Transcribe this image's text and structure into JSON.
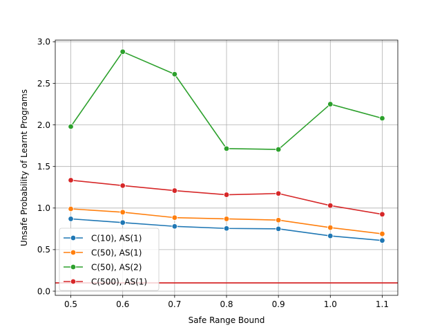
{
  "chart_data": {
    "type": "line",
    "title": "",
    "xlabel": "Safe Range Bound",
    "ylabel": "Unsafe Probability of Learnt Programs",
    "x": [
      0.5,
      0.6,
      0.7,
      0.8,
      0.9,
      1.0,
      1.1
    ],
    "x_tick_labels": [
      "0.5",
      "0.6",
      "0.7",
      "0.8",
      "0.9",
      "1.0",
      "1.1"
    ],
    "xlim": [
      0.47,
      1.13
    ],
    "ylim": [
      -0.05,
      3.02
    ],
    "y_ticks": [
      0.0,
      0.5,
      1.0,
      1.5,
      2.0,
      2.5,
      3.0
    ],
    "y_tick_labels": [
      "0.0",
      "0.5",
      "1.0",
      "1.5",
      "2.0",
      "2.5",
      "3.0"
    ],
    "grid": true,
    "legend_position": "lower-left",
    "series": [
      {
        "name": "C(10), AS(1)",
        "color": "#1f77b4",
        "values": [
          0.87,
          0.825,
          0.78,
          0.755,
          0.75,
          0.665,
          0.61
        ]
      },
      {
        "name": "C(50), AS(1)",
        "color": "#ff7f0e",
        "values": [
          0.99,
          0.95,
          0.885,
          0.87,
          0.855,
          0.765,
          0.69
        ]
      },
      {
        "name": "C(50), AS(2)",
        "color": "#2ca02c",
        "values": [
          1.98,
          2.88,
          2.61,
          1.715,
          1.705,
          2.25,
          2.08
        ]
      },
      {
        "name": "C(500), AS(1)",
        "color": "#d62728",
        "values": [
          1.335,
          1.27,
          1.21,
          1.16,
          1.175,
          1.03,
          0.925
        ]
      }
    ],
    "reference_line": {
      "y": 0.1,
      "color": "#d62728"
    }
  }
}
